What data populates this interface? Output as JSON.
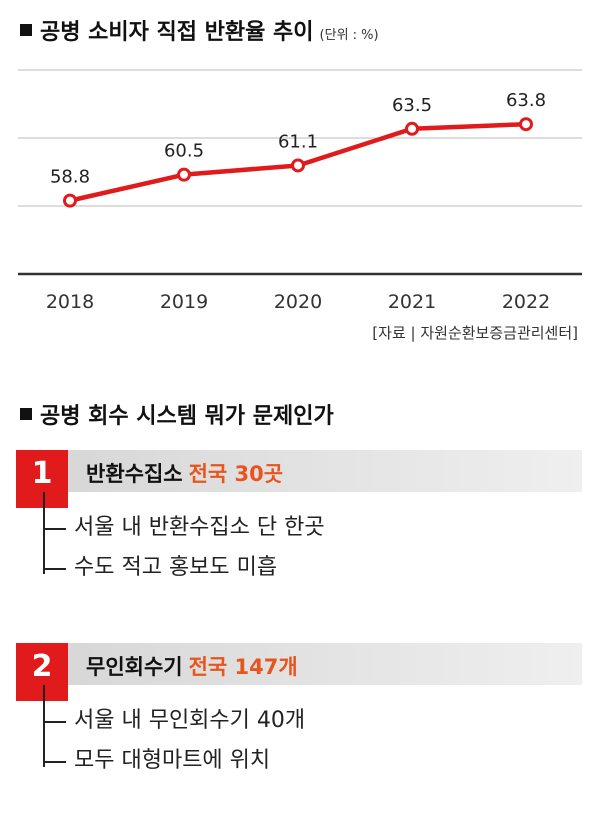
{
  "chart_section": {
    "title": "공병 소비자 직접 반환율 추이",
    "unit": "(단위 : %)",
    "source": "[자료 | 자원순환보증금관리센터]"
  },
  "chart_data": {
    "type": "line",
    "categories": [
      "2018",
      "2019",
      "2020",
      "2021",
      "2022"
    ],
    "series": [
      {
        "values": [
          58.8,
          60.5,
          61.1,
          63.5,
          63.8
        ]
      }
    ],
    "data_labels": [
      "58.8",
      "60.5",
      "61.1",
      "63.5",
      "63.8"
    ],
    "ylim": [
      54,
      68
    ],
    "grid": true,
    "colors": {
      "line": "#e11b1b",
      "grid": "#bbbbbb",
      "axis": "#333333"
    }
  },
  "issues_section": {
    "title": "공병 회수 시스템 뭐가 문제인가",
    "items": [
      {
        "num": "1",
        "label": "반환수집소",
        "highlight": "전국 30곳",
        "subitems": [
          "서울 내 반환수집소 단 한곳",
          "수도 적고 홍보도 미흡"
        ]
      },
      {
        "num": "2",
        "label": "무인회수기",
        "highlight": "전국 147개",
        "subitems": [
          "서울 내 무인회수기 40개",
          "모두 대형마트에 위치"
        ]
      }
    ]
  },
  "colors": {
    "accent_red": "#e11b1b",
    "highlight_orange": "#e8541c"
  }
}
